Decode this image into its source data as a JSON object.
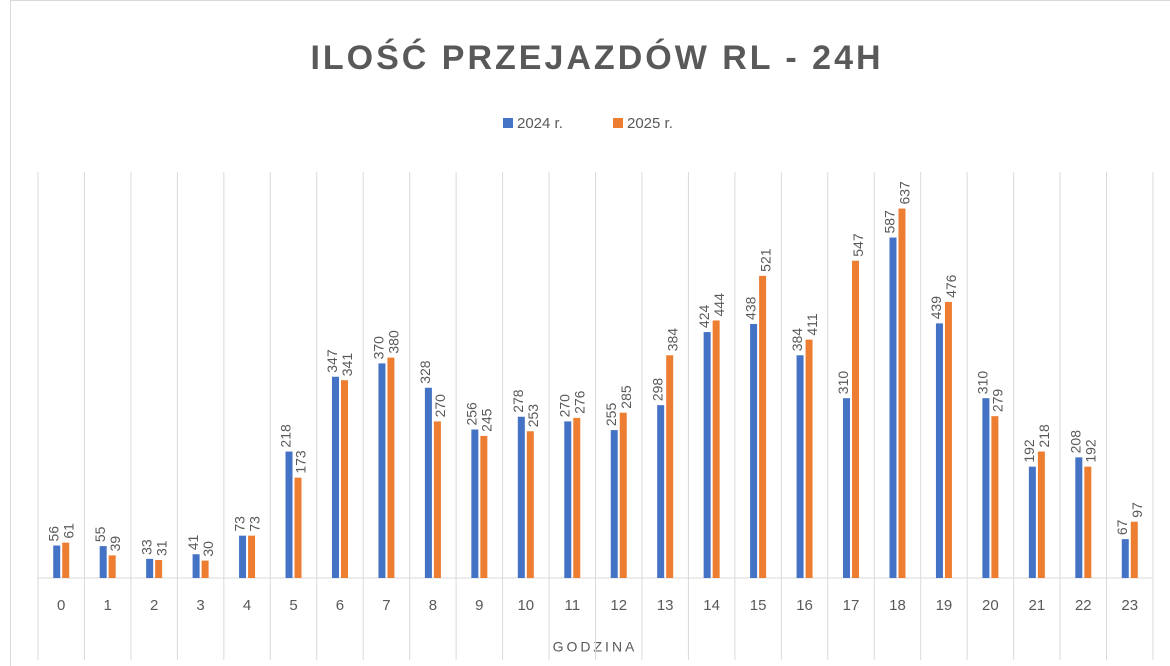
{
  "chart_data": {
    "type": "bar",
    "title": "ILOŚĆ PRZEJAZDÓW RL - 24H",
    "x_label": "GODZINA",
    "categories": [
      "0",
      "1",
      "2",
      "3",
      "4",
      "5",
      "6",
      "7",
      "8",
      "9",
      "10",
      "11",
      "12",
      "13",
      "14",
      "15",
      "16",
      "17",
      "18",
      "19",
      "20",
      "21",
      "22",
      "23"
    ],
    "series": [
      {
        "name": "2024 r.",
        "color": "#4472c4",
        "values": [
          56,
          55,
          33,
          41,
          73,
          218,
          347,
          370,
          328,
          256,
          278,
          270,
          255,
          298,
          424,
          438,
          384,
          310,
          587,
          439,
          310,
          192,
          208,
          67
        ]
      },
      {
        "name": "2025 r.",
        "color": "#ed7d31",
        "values": [
          61,
          39,
          31,
          30,
          73,
          173,
          341,
          380,
          270,
          245,
          253,
          276,
          285,
          384,
          444,
          521,
          411,
          547,
          637,
          476,
          279,
          218,
          192,
          97
        ]
      }
    ],
    "ylim": [
      0,
      700
    ],
    "grid": true,
    "legend": "top"
  }
}
